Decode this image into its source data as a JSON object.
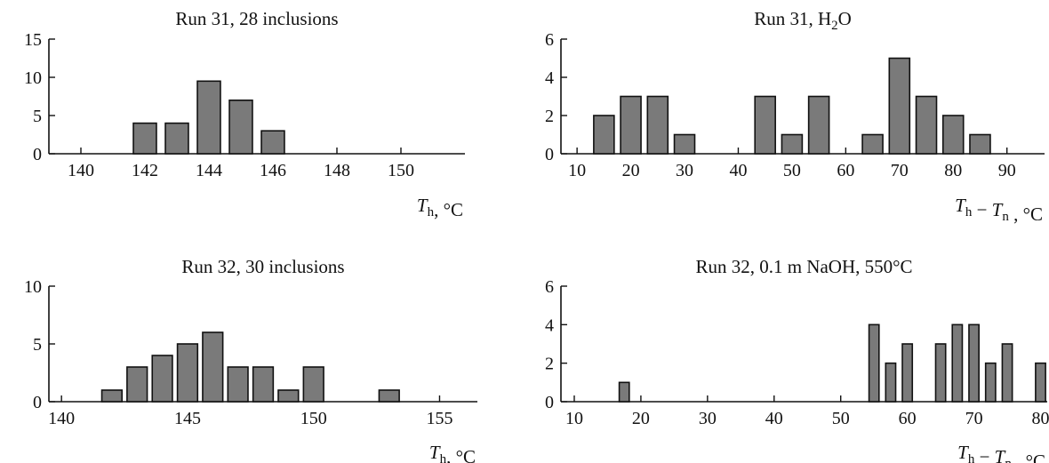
{
  "colors": {
    "bar_fill": "#7a7a7a",
    "bar_stroke": "#111111",
    "axis": "#111111"
  },
  "chart_data": [
    {
      "type": "bar",
      "title": "Run 31, 28 inclusions",
      "xlabel": "Th, °C",
      "ylabel": "",
      "xlim": [
        139,
        152
      ],
      "ylim": [
        0,
        15
      ],
      "xticks": [
        "140",
        "142",
        "144",
        "146",
        "148",
        "150"
      ],
      "yticks": [
        "0",
        "5",
        "10",
        "15"
      ],
      "bar_width": 0.72,
      "x": [
        142,
        143,
        144,
        145,
        146
      ],
      "values": [
        4,
        4,
        9.5,
        7,
        3
      ]
    },
    {
      "type": "bar",
      "title": "Run 31, H2O",
      "xlabel": "Th − Tn , °C",
      "ylabel": "",
      "xlim": [
        7,
        97
      ],
      "ylim": [
        0,
        6
      ],
      "xticks": [
        "10",
        "20",
        "30",
        "40",
        "50",
        "60",
        "70",
        "80",
        "90"
      ],
      "yticks": [
        "0",
        "2",
        "4",
        "6"
      ],
      "bar_width": 3.8,
      "x": [
        15,
        20,
        25,
        30,
        45,
        50,
        55,
        65,
        70,
        75,
        80,
        85
      ],
      "values": [
        2,
        3,
        3,
        1,
        3,
        1,
        3,
        1,
        5,
        3,
        2,
        1
      ]
    },
    {
      "type": "bar",
      "title": "Run 32, 30 inclusions",
      "xlabel": "Th, °C",
      "ylabel": "",
      "xlim": [
        139.5,
        156.5
      ],
      "ylim": [
        0,
        10
      ],
      "xticks": [
        "140",
        "145",
        "150",
        "155"
      ],
      "yticks": [
        "0",
        "5",
        "10"
      ],
      "bar_width": 0.8,
      "x": [
        142,
        143,
        144,
        145,
        146,
        147,
        148,
        149,
        150,
        153
      ],
      "values": [
        1,
        3,
        4,
        5,
        6,
        3,
        3,
        1,
        3,
        1
      ]
    },
    {
      "type": "bar",
      "title": "Run 32, 0.1 m NaOH, 550°C",
      "xlabel": "Th − Tn , °C",
      "ylabel": "",
      "xlim": [
        8,
        81
      ],
      "ylim": [
        0,
        6
      ],
      "xticks": [
        "10",
        "20",
        "30",
        "40",
        "50",
        "60",
        "70",
        "80"
      ],
      "yticks": [
        "0",
        "2",
        "4",
        "6"
      ],
      "bar_width": 1.5,
      "x": [
        17.5,
        55,
        57.5,
        60,
        65,
        67.5,
        70,
        72.5,
        75,
        80
      ],
      "values": [
        1,
        4,
        2,
        3,
        3,
        4,
        4,
        2,
        3,
        2
      ]
    }
  ]
}
